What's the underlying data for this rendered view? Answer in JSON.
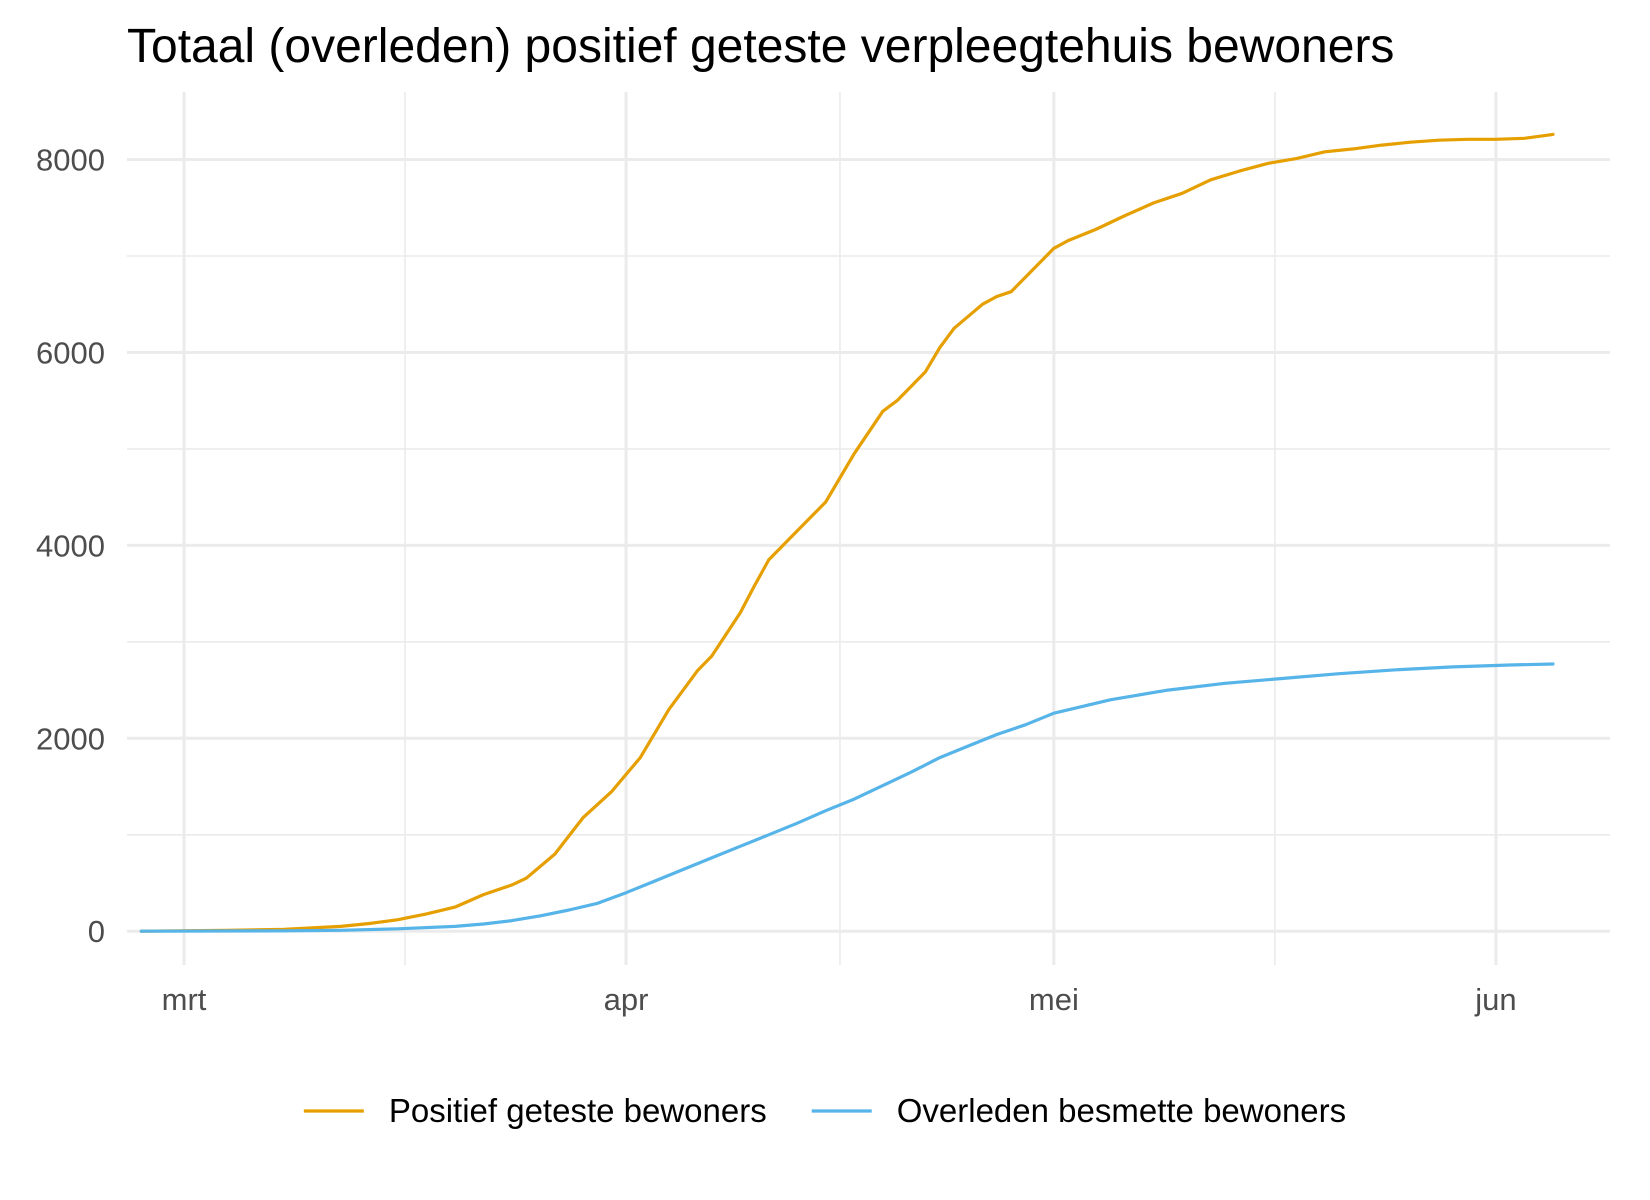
{
  "chart_data": {
    "type": "line",
    "title": "Totaal (overleden) positief geteste verpleegtehuis bewoners",
    "xlabel": "",
    "ylabel": "",
    "x_axis": {
      "type": "date",
      "range": [
        "2020-02-26",
        "2020-06-09"
      ],
      "ticks": [
        {
          "date": "2020-03-01",
          "label": "mrt"
        },
        {
          "date": "2020-04-01",
          "label": "apr"
        },
        {
          "date": "2020-05-01",
          "label": "mei"
        },
        {
          "date": "2020-06-01",
          "label": "jun"
        }
      ],
      "minor_gridlines": true
    },
    "y_axis": {
      "range": [
        -350,
        8700
      ],
      "ticks": [
        0,
        2000,
        4000,
        6000,
        8000
      ],
      "minor_gridlines": true
    },
    "grid": true,
    "legend": {
      "position": "bottom"
    },
    "series": [
      {
        "name": "Positief geteste bewoners",
        "color": "#E69F00",
        "points": [
          [
            "2020-02-27",
            0
          ],
          [
            "2020-03-04",
            10
          ],
          [
            "2020-03-08",
            20
          ],
          [
            "2020-03-12",
            50
          ],
          [
            "2020-03-14",
            80
          ],
          [
            "2020-03-16",
            120
          ],
          [
            "2020-03-18",
            180
          ],
          [
            "2020-03-20",
            250
          ],
          [
            "2020-03-22",
            380
          ],
          [
            "2020-03-24",
            480
          ],
          [
            "2020-03-25",
            550
          ],
          [
            "2020-03-27",
            800
          ],
          [
            "2020-03-29",
            1180
          ],
          [
            "2020-03-31",
            1450
          ],
          [
            "2020-04-02",
            1800
          ],
          [
            "2020-04-04",
            2300
          ],
          [
            "2020-04-06",
            2700
          ],
          [
            "2020-04-07",
            2850
          ],
          [
            "2020-04-09",
            3300
          ],
          [
            "2020-04-10",
            3580
          ],
          [
            "2020-04-11",
            3850
          ],
          [
            "2020-04-13",
            4150
          ],
          [
            "2020-04-14",
            4300
          ],
          [
            "2020-04-15",
            4450
          ],
          [
            "2020-04-17",
            4950
          ],
          [
            "2020-04-19",
            5390
          ],
          [
            "2020-04-20",
            5500
          ],
          [
            "2020-04-21",
            5650
          ],
          [
            "2020-04-22",
            5800
          ],
          [
            "2020-04-23",
            6050
          ],
          [
            "2020-04-24",
            6250
          ],
          [
            "2020-04-26",
            6500
          ],
          [
            "2020-04-27",
            6580
          ],
          [
            "2020-04-28",
            6630
          ],
          [
            "2020-04-29",
            6780
          ],
          [
            "2020-05-01",
            7080
          ],
          [
            "2020-05-02",
            7160
          ],
          [
            "2020-05-04",
            7280
          ],
          [
            "2020-05-06",
            7420
          ],
          [
            "2020-05-08",
            7550
          ],
          [
            "2020-05-10",
            7650
          ],
          [
            "2020-05-12",
            7790
          ],
          [
            "2020-05-14",
            7880
          ],
          [
            "2020-05-16",
            7960
          ],
          [
            "2020-05-18",
            8010
          ],
          [
            "2020-05-20",
            8080
          ],
          [
            "2020-05-22",
            8110
          ],
          [
            "2020-05-24",
            8150
          ],
          [
            "2020-05-26",
            8180
          ],
          [
            "2020-05-28",
            8200
          ],
          [
            "2020-05-30",
            8210
          ],
          [
            "2020-06-01",
            8210
          ],
          [
            "2020-06-03",
            8220
          ],
          [
            "2020-06-05",
            8260
          ]
        ]
      },
      {
        "name": "Overleden besmette bewoners",
        "color": "#56B4E9",
        "points": [
          [
            "2020-02-27",
            0
          ],
          [
            "2020-03-08",
            5
          ],
          [
            "2020-03-12",
            10
          ],
          [
            "2020-03-16",
            25
          ],
          [
            "2020-03-20",
            50
          ],
          [
            "2020-03-22",
            75
          ],
          [
            "2020-03-24",
            110
          ],
          [
            "2020-03-26",
            160
          ],
          [
            "2020-03-28",
            220
          ],
          [
            "2020-03-30",
            290
          ],
          [
            "2020-04-01",
            400
          ],
          [
            "2020-04-03",
            520
          ],
          [
            "2020-04-05",
            640
          ],
          [
            "2020-04-07",
            760
          ],
          [
            "2020-04-09",
            880
          ],
          [
            "2020-04-11",
            1000
          ],
          [
            "2020-04-13",
            1120
          ],
          [
            "2020-04-15",
            1250
          ],
          [
            "2020-04-17",
            1370
          ],
          [
            "2020-04-19",
            1510
          ],
          [
            "2020-04-21",
            1650
          ],
          [
            "2020-04-23",
            1800
          ],
          [
            "2020-04-25",
            1920
          ],
          [
            "2020-04-27",
            2040
          ],
          [
            "2020-04-29",
            2140
          ],
          [
            "2020-05-01",
            2260
          ],
          [
            "2020-05-05",
            2400
          ],
          [
            "2020-05-09",
            2500
          ],
          [
            "2020-05-13",
            2570
          ],
          [
            "2020-05-17",
            2620
          ],
          [
            "2020-05-21",
            2670
          ],
          [
            "2020-05-25",
            2710
          ],
          [
            "2020-05-29",
            2740
          ],
          [
            "2020-06-02",
            2760
          ],
          [
            "2020-06-05",
            2770
          ]
        ]
      }
    ]
  }
}
